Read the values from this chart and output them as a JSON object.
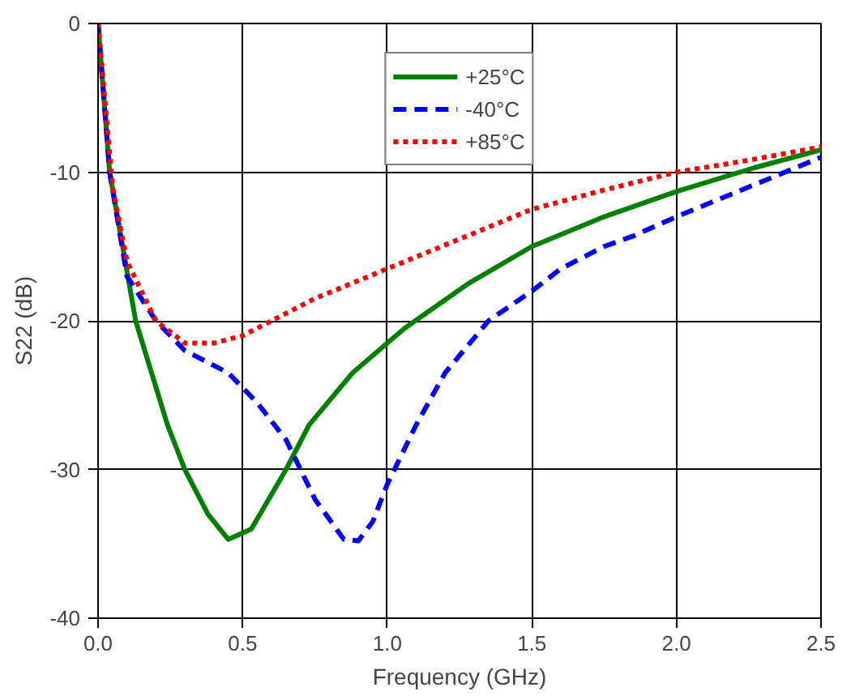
{
  "chart_data": {
    "type": "line",
    "xlabel": "Frequency (GHz)",
    "ylabel": "S22 (dB)",
    "xlim": [
      0,
      2.5
    ],
    "ylim": [
      -40,
      0
    ],
    "xticks": [
      {
        "value": 0,
        "label": "0.0"
      },
      {
        "value": 0.5,
        "label": "0.5"
      },
      {
        "value": 1,
        "label": "1.0"
      },
      {
        "value": 1.5,
        "label": "1.5"
      },
      {
        "value": 2,
        "label": "2.0"
      },
      {
        "value": 2.5,
        "label": "2.5"
      }
    ],
    "yticks": [
      -40,
      -30,
      -20,
      -10,
      0
    ],
    "grid": true,
    "legend": "top",
    "marker": "none",
    "series": [
      {
        "name": "+25°C",
        "color": "#008000",
        "line_style": "solid",
        "x": [
          0,
          0.04,
          0.13,
          0.24,
          0.3,
          0.38,
          0.45,
          0.53,
          0.65,
          0.73,
          0.88,
          1.0,
          1.06,
          1.28,
          1.5,
          1.75,
          2.0,
          2.27,
          2.5
        ],
        "values": [
          0,
          -10,
          -20,
          -27,
          -30,
          -33,
          -34.7,
          -34,
          -30,
          -27,
          -23.5,
          -21.5,
          -20.5,
          -17.5,
          -15,
          -13,
          -11.3,
          -9.7,
          -8.5
        ]
      },
      {
        "name": "-40°C",
        "color": "#0000ff",
        "line_style": "dashed",
        "x": [
          0,
          0.04,
          0.1,
          0.2,
          0.3,
          0.45,
          0.55,
          0.65,
          0.75,
          0.85,
          0.9,
          0.95,
          1.0,
          1.1,
          1.2,
          1.35,
          1.5,
          1.6,
          1.75,
          1.85,
          2.0,
          2.25,
          2.5
        ],
        "values": [
          0,
          -10,
          -17,
          -20,
          -22,
          -23.5,
          -25.5,
          -28,
          -32,
          -34.7,
          -34.8,
          -33.5,
          -31,
          -27,
          -23.5,
          -20,
          -18,
          -16.5,
          -15,
          -14.3,
          -13,
          -11,
          -9
        ]
      },
      {
        "name": "+85°C",
        "color": "#ff0000",
        "line_style": "dotted",
        "x": [
          0,
          0.05,
          0.1,
          0.2,
          0.3,
          0.4,
          0.5,
          0.6,
          0.75,
          1.0,
          1.25,
          1.5,
          1.75,
          2.0,
          2.25,
          2.5
        ],
        "values": [
          0,
          -11,
          -16,
          -20,
          -21.5,
          -21.5,
          -21,
          -20,
          -18.5,
          -16.5,
          -14.5,
          -12.5,
          -11.2,
          -10,
          -9.2,
          -8.3
        ]
      }
    ]
  }
}
